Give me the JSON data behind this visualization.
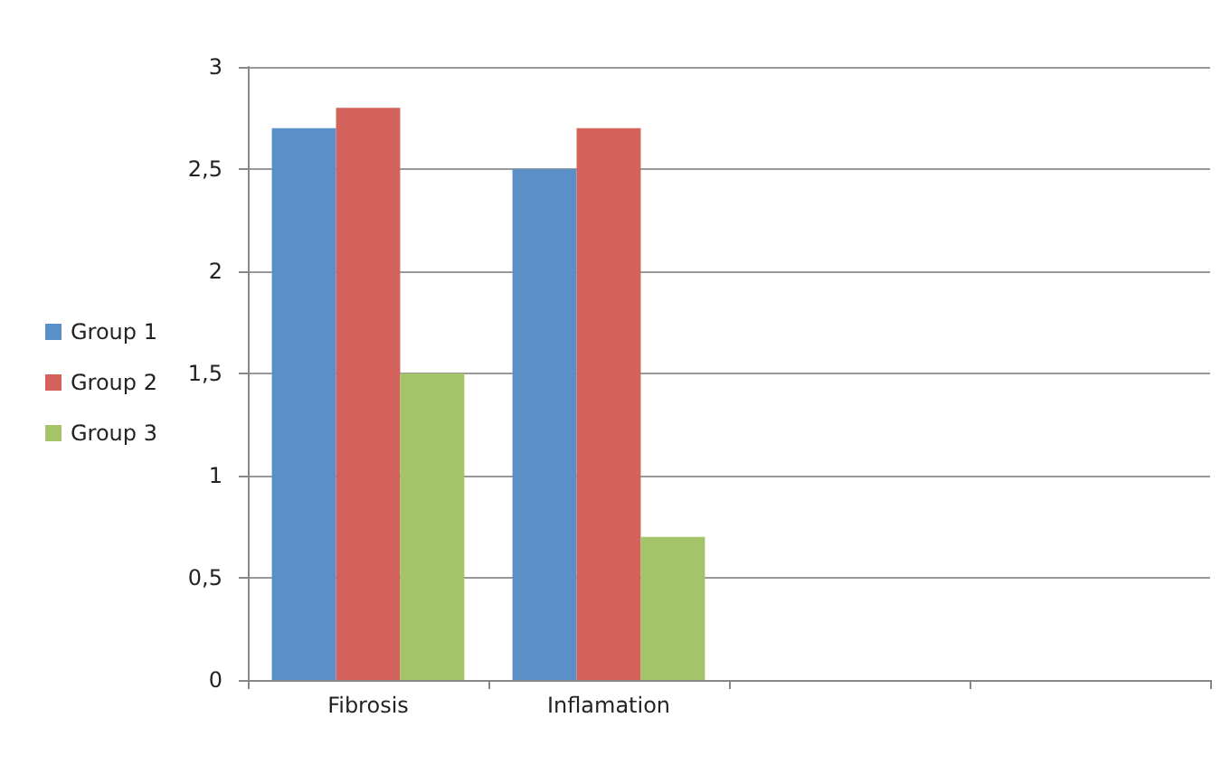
{
  "chart_data": {
    "type": "bar",
    "categories": [
      "Fibrosis",
      "Inflamation",
      null,
      null
    ],
    "series": [
      {
        "name": "Group 1",
        "color": "#5b8fc7",
        "values": [
          2.7,
          2.5,
          null,
          null
        ]
      },
      {
        "name": "Group 2",
        "color": "#d4625c",
        "values": [
          2.8,
          2.7,
          null,
          null
        ]
      },
      {
        "name": "Group 3",
        "color": "#a5c46a",
        "values": [
          1.5,
          0.7,
          null,
          null
        ]
      }
    ],
    "ylim": [
      0,
      3
    ],
    "yticks": [
      0,
      {
        "value": 0.5,
        "label": "0,5"
      },
      1,
      {
        "value": 1.5,
        "label": "1,5"
      },
      2,
      {
        "value": 2.5,
        "label": "2,5"
      },
      3
    ],
    "grid": "y",
    "legend": "left"
  }
}
